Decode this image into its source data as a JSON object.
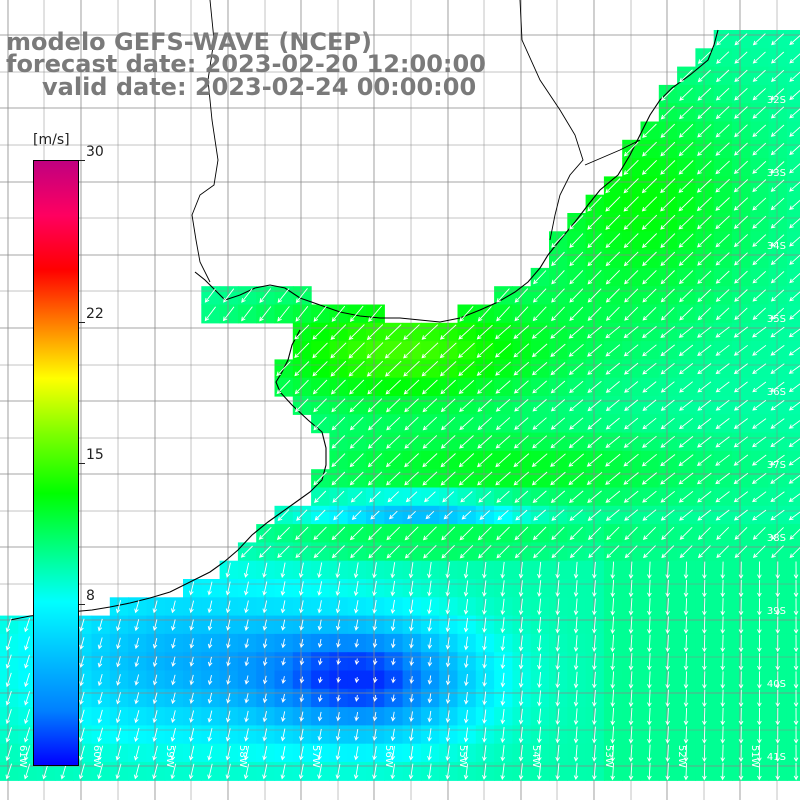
{
  "title": {
    "line1": "modelo GEFS-WAVE (NCEP)",
    "line2": "forecast date: 2023-02-20 12:00:00",
    "line3": "valid date: 2023-02-24 00:00:00"
  },
  "colorbar": {
    "unit": "[m/s]",
    "min": 0,
    "max": 30,
    "ticks": [
      "30",
      "22",
      "15",
      "8"
    ],
    "tick_values": [
      30,
      22,
      15,
      8
    ],
    "colors": [
      "#0000ff",
      "#0080ff",
      "#00c0ff",
      "#00ffff",
      "#00ff80",
      "#00ff00",
      "#80ff00",
      "#ffff00",
      "#ff8000",
      "#ff0000",
      "#ff0060",
      "#c00080"
    ]
  },
  "map": {
    "variable": "wind speed and direction",
    "lon_labels": [
      "61W",
      "60W",
      "59W",
      "58W",
      "57W",
      "56W",
      "55W",
      "54W",
      "53W",
      "52W",
      "51W"
    ],
    "lat_labels": [
      "32S",
      "33S",
      "34S",
      "35S",
      "36S",
      "37S",
      "38S",
      "39S",
      "40S",
      "41S"
    ],
    "colors": {
      "land": "#ffffff",
      "grid": "#888888",
      "coast": "#000000",
      "arrow": "#ffffff"
    }
  }
}
